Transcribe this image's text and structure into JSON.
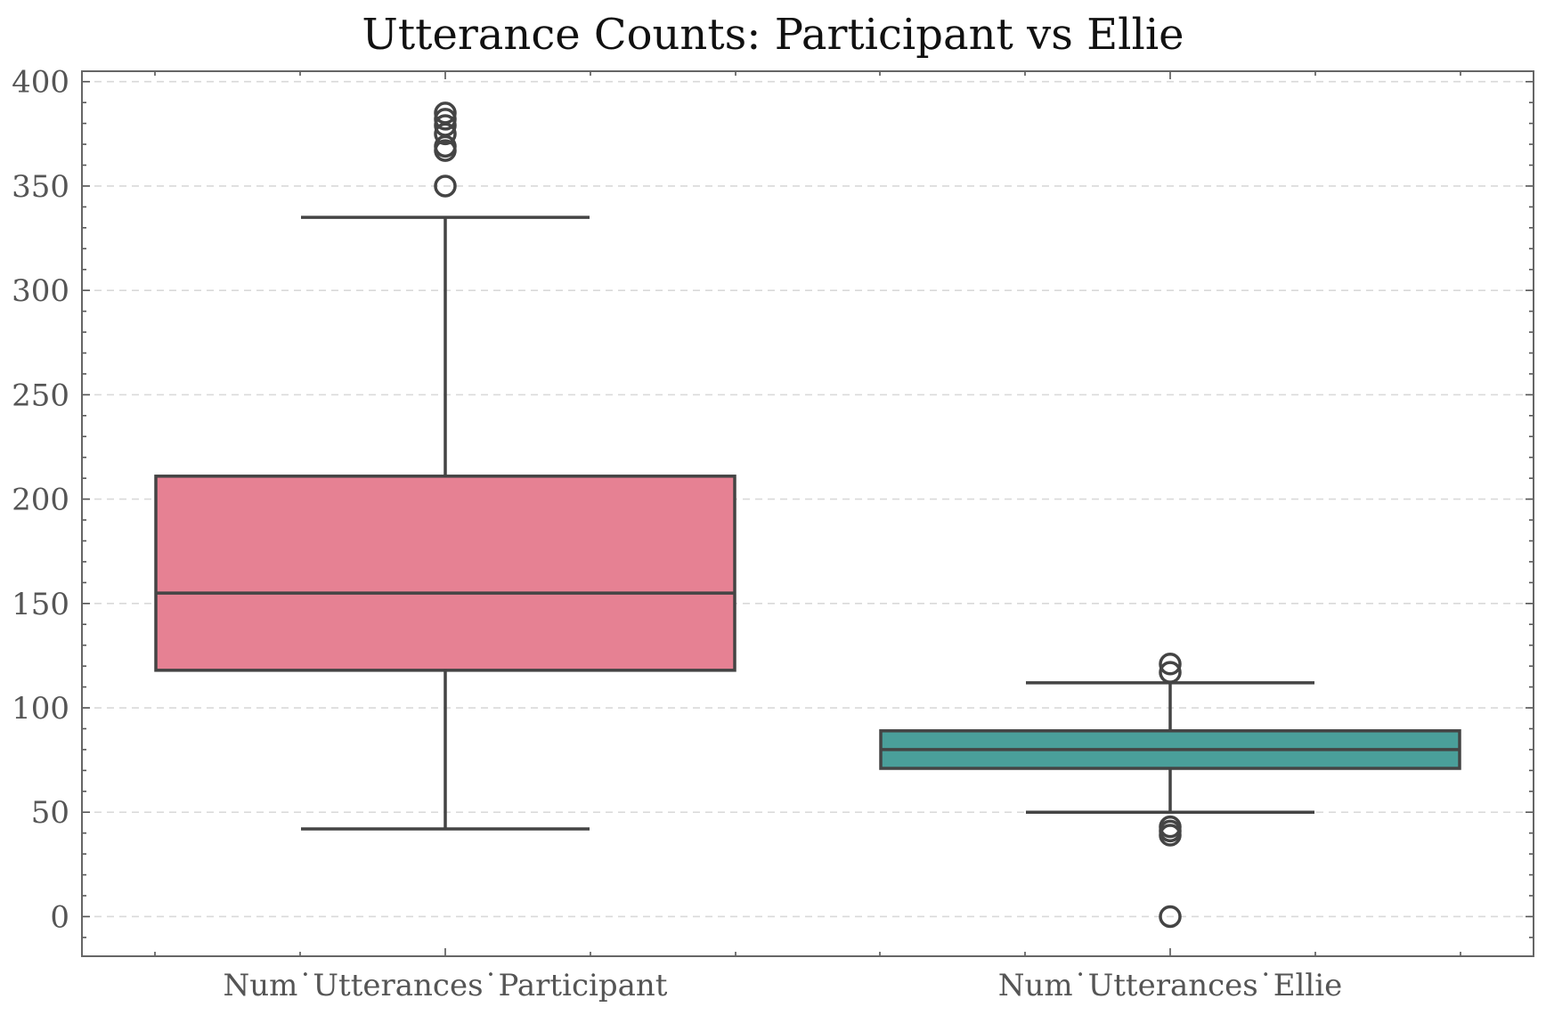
{
  "chart_data": {
    "type": "box",
    "title": "Utterance Counts: Participant vs Ellie",
    "xlabel": "",
    "ylabel": "",
    "ylim": [
      -19,
      405
    ],
    "yticks": [
      0,
      50,
      100,
      150,
      200,
      250,
      300,
      350,
      400
    ],
    "grid": true,
    "categories": [
      "Num˙Utterances˙Participant",
      "Num˙Utterances˙Ellie"
    ],
    "boxes": [
      {
        "category": "Num˙Utterances˙Participant",
        "color": "#e68193",
        "whisker_low": 42,
        "q1": 118,
        "median": 155,
        "q3": 211,
        "whisker_high": 335,
        "outliers": [
          350,
          367,
          369,
          375,
          379,
          382,
          385
        ]
      },
      {
        "category": "Num˙Utterances˙Ellie",
        "color": "#4a9f9a",
        "whisker_low": 50,
        "q1": 71,
        "median": 80,
        "q3": 89,
        "whisker_high": 112,
        "outliers": [
          0,
          39,
          41,
          43,
          117,
          121
        ]
      }
    ]
  }
}
